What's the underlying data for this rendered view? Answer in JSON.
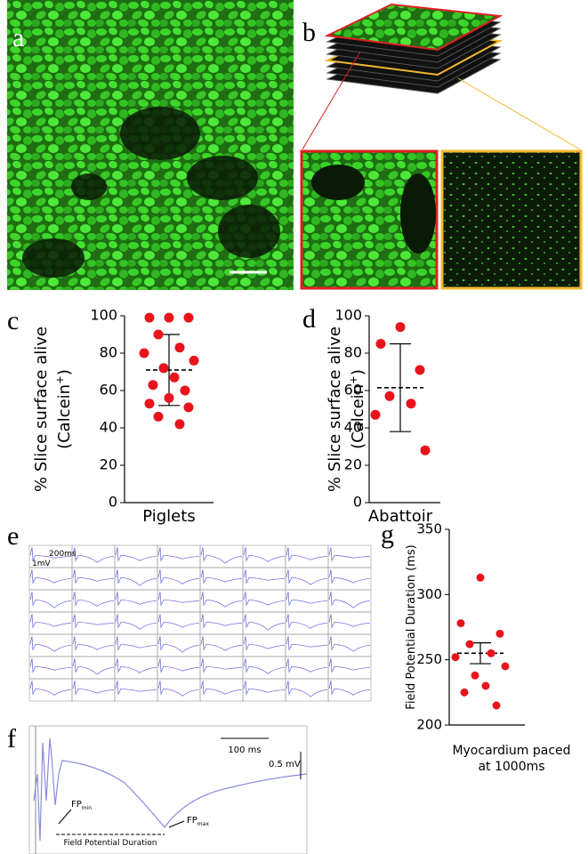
{
  "panels": {
    "a": "a",
    "b": "b",
    "c": "c",
    "d": "d",
    "e": "e",
    "f": "f",
    "g": "g"
  },
  "chart_data": [
    {
      "type": "scatter",
      "x_label": "Piglets",
      "y_label_lines": [
        "% Slice surface alive",
        "(Calcein"
      ],
      "y_label_sup": "+",
      "y_label_end": ")",
      "values": [
        99,
        99,
        99,
        90,
        83,
        80,
        76,
        72,
        67,
        63,
        60,
        56,
        53,
        51,
        46,
        42
      ],
      "color": "#e8141c",
      "mean": 71,
      "error_low": 52,
      "error_high": 90,
      "ylim": [
        0,
        100
      ],
      "yticks": [
        0,
        20,
        40,
        60,
        80,
        100
      ]
    },
    {
      "type": "scatter",
      "x_label": "Abattoir",
      "y_label_lines": [
        "% Slice surface alive",
        "(Calcein"
      ],
      "y_label_sup": "+",
      "y_label_end": ")",
      "values": [
        94,
        85,
        71,
        57,
        53,
        47,
        28
      ],
      "color": "#e8141c",
      "mean": 61.5,
      "error_low": 38,
      "error_high": 85,
      "ylim": [
        0,
        100
      ],
      "yticks": [
        0,
        20,
        40,
        60,
        80,
        100
      ]
    },
    {
      "type": "scatter",
      "x_label_lines": [
        "Myocardium paced",
        "at 1000ms"
      ],
      "y_label_lines": [
        "Field Potential Duration (ms)"
      ],
      "values": [
        313,
        278,
        270,
        262,
        255,
        252,
        245,
        238,
        230,
        225,
        215
      ],
      "color": "#e8141c",
      "mean": 255,
      "error_low": 247,
      "error_high": 263,
      "ylim": [
        200,
        350
      ],
      "yticks": [
        200,
        250,
        300,
        350
      ]
    }
  ],
  "traces": {
    "time_scale": "200ms",
    "volt_scale": "1mV"
  },
  "fp_trace": {
    "time_scale": "100 ms",
    "volt_scale": "0.5 mV",
    "fp_min": {
      "label": "FP",
      "sub": "min"
    },
    "fp_max": {
      "label": "FP",
      "sub": "max"
    },
    "duration": "Field Potential Duration"
  }
}
